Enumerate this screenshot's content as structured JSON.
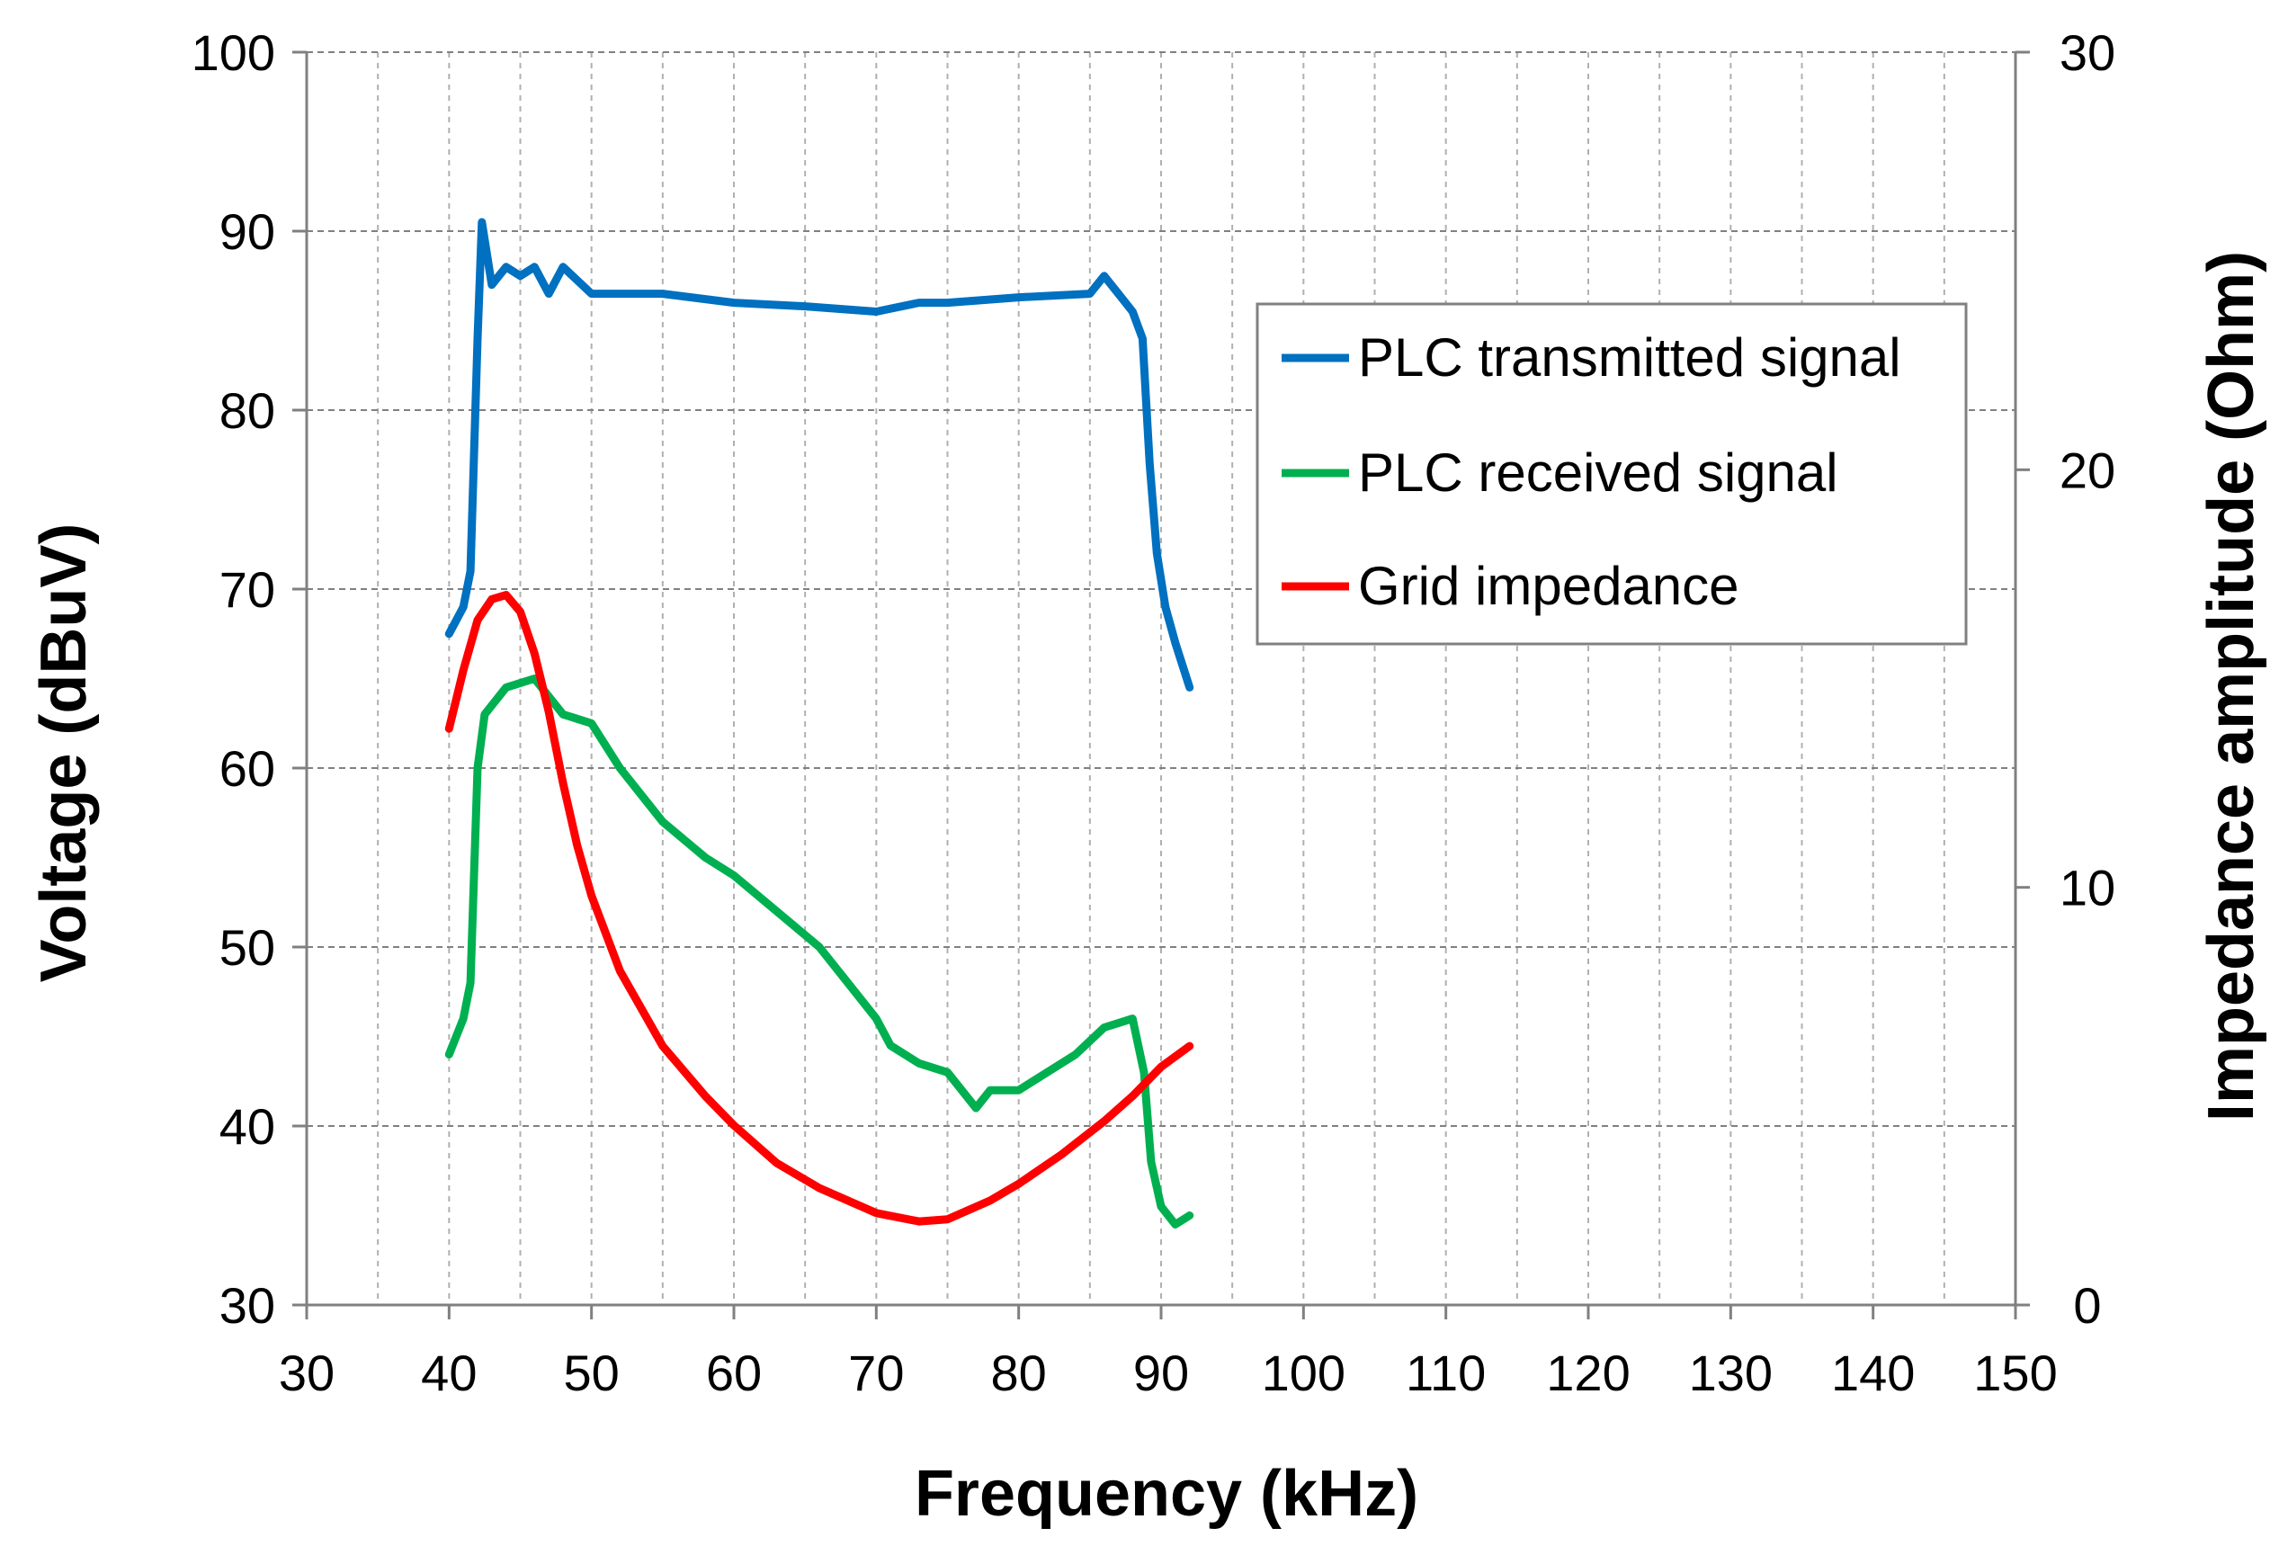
{
  "chart_data": {
    "type": "line",
    "title": "",
    "xlabel": "Frequency (kHz)",
    "ylabel": "Voltage (dBuV)",
    "y2label": "Impedance amplitude (Ohm)",
    "xlim": [
      30,
      150
    ],
    "ylim": [
      30,
      100
    ],
    "y2lim": [
      0,
      30
    ],
    "x_ticks": [
      "30",
      "40",
      "50",
      "60",
      "70",
      "80",
      "90",
      "100",
      "110",
      "120",
      "130",
      "140",
      "150"
    ],
    "y_ticks": [
      "30",
      "40",
      "50",
      "60",
      "70",
      "80",
      "90",
      "100"
    ],
    "y2_ticks": [
      "0",
      "10",
      "20",
      "30"
    ],
    "grid": true,
    "legend_position": "top-right",
    "series": [
      {
        "name": "PLC transmitted signal",
        "axis": "left",
        "color": "#0070C0",
        "points": [
          [
            40,
            67.5
          ],
          [
            41,
            69
          ],
          [
            41.5,
            71
          ],
          [
            42,
            84
          ],
          [
            42.3,
            90.5
          ],
          [
            43,
            87
          ],
          [
            44,
            88
          ],
          [
            45,
            87.5
          ],
          [
            46,
            88
          ],
          [
            47,
            86.5
          ],
          [
            48,
            88
          ],
          [
            50,
            86.5
          ],
          [
            55,
            86.5
          ],
          [
            60,
            86
          ],
          [
            65,
            85.8
          ],
          [
            70,
            85.5
          ],
          [
            73,
            86
          ],
          [
            75,
            86
          ],
          [
            80,
            86.3
          ],
          [
            85,
            86.5
          ],
          [
            86,
            87.5
          ],
          [
            87,
            86.5
          ],
          [
            88,
            85.5
          ],
          [
            88.7,
            84
          ],
          [
            89.2,
            77
          ],
          [
            89.7,
            72
          ],
          [
            90.3,
            69
          ],
          [
            91,
            67
          ],
          [
            92,
            64.5
          ]
        ]
      },
      {
        "name": "PLC received signal",
        "axis": "left",
        "color": "#00B050",
        "points": [
          [
            40,
            44
          ],
          [
            41,
            46
          ],
          [
            41.5,
            48
          ],
          [
            42,
            60
          ],
          [
            42.5,
            63
          ],
          [
            44,
            64.5
          ],
          [
            46,
            65
          ],
          [
            48,
            63
          ],
          [
            50,
            62.5
          ],
          [
            52,
            60
          ],
          [
            55,
            57
          ],
          [
            58,
            55
          ],
          [
            60,
            54
          ],
          [
            63,
            52
          ],
          [
            66,
            50
          ],
          [
            68,
            48
          ],
          [
            70,
            46
          ],
          [
            71,
            44.5
          ],
          [
            73,
            43.5
          ],
          [
            75,
            43
          ],
          [
            77,
            41
          ],
          [
            78,
            42
          ],
          [
            80,
            42
          ],
          [
            82,
            43
          ],
          [
            84,
            44
          ],
          [
            86,
            45.5
          ],
          [
            88,
            46
          ],
          [
            88.8,
            43
          ],
          [
            89.3,
            38
          ],
          [
            90,
            35.5
          ],
          [
            91,
            34.5
          ],
          [
            92,
            35
          ]
        ]
      },
      {
        "name": "Grid impedance",
        "axis": "right",
        "color": "#FF0000",
        "points": [
          [
            40,
            13.8
          ],
          [
            41,
            15.2
          ],
          [
            42,
            16.4
          ],
          [
            43,
            16.9
          ],
          [
            44,
            17
          ],
          [
            45,
            16.6
          ],
          [
            46,
            15.6
          ],
          [
            47,
            14.2
          ],
          [
            48,
            12.5
          ],
          [
            49,
            11
          ],
          [
            50,
            9.8
          ],
          [
            52,
            8
          ],
          [
            55,
            6.2
          ],
          [
            58,
            5
          ],
          [
            60,
            4.3
          ],
          [
            63,
            3.4
          ],
          [
            66,
            2.8
          ],
          [
            70,
            2.2
          ],
          [
            73,
            2
          ],
          [
            75,
            2.05
          ],
          [
            78,
            2.5
          ],
          [
            80,
            2.9
          ],
          [
            83,
            3.6
          ],
          [
            86,
            4.4
          ],
          [
            88,
            5
          ],
          [
            90,
            5.7
          ],
          [
            92,
            6.2
          ]
        ]
      }
    ]
  }
}
